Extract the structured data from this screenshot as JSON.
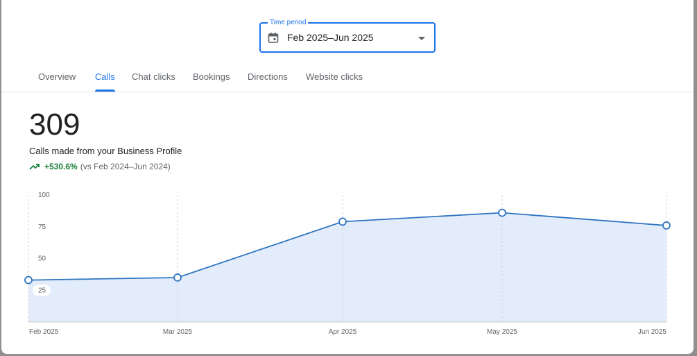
{
  "time_period": {
    "label": "Time period",
    "value": "Feb 2025–Jun 2025"
  },
  "tabs": [
    {
      "label": "Overview",
      "active": false
    },
    {
      "label": "Calls",
      "active": true
    },
    {
      "label": "Chat clicks",
      "active": false
    },
    {
      "label": "Bookings",
      "active": false
    },
    {
      "label": "Directions",
      "active": false
    },
    {
      "label": "Website clicks",
      "active": false
    }
  ],
  "metric": {
    "value": "309",
    "description": "Calls made from your Business Profile",
    "change": "+530.6%",
    "comparison": "(vs Feb 2024–Jun 2024)"
  },
  "colors": {
    "accent": "#1a73e8",
    "line": "#2f74c0",
    "area": "#e2ecfb",
    "positive": "#188038"
  },
  "chart_data": {
    "type": "area",
    "x": [
      "Feb 2025",
      "Mar 2025",
      "Apr 2025",
      "May 2025",
      "Jun 2025"
    ],
    "series": [
      {
        "values": [
          33,
          35,
          79,
          86,
          76
        ]
      }
    ],
    "yticks": [
      25,
      50,
      75,
      100
    ],
    "ylim": [
      0,
      100
    ],
    "grid": "vertical dashed"
  }
}
